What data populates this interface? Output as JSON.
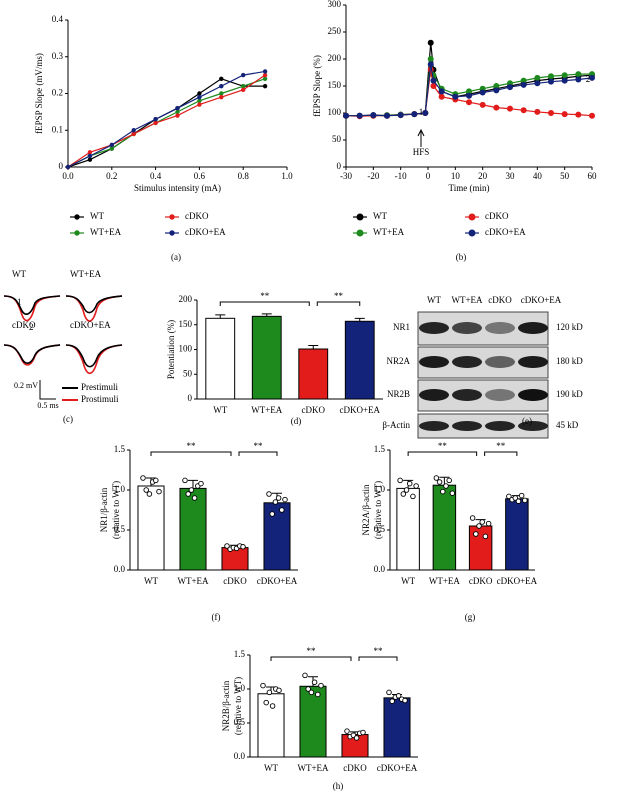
{
  "chart_data": [
    {
      "type": "line",
      "panel_label": "(a)",
      "xlabel": "Stimulus intensity (mA)",
      "ylabel": "fEPSP Slope (mV/ms)",
      "x": [
        0,
        0.1,
        0.2,
        0.3,
        0.4,
        0.5,
        0.6,
        0.7,
        0.8,
        0.9
      ],
      "series": [
        {
          "name": "WT",
          "color": "#000000",
          "values": [
            0,
            0.02,
            0.05,
            0.09,
            0.13,
            0.16,
            0.2,
            0.24,
            0.22,
            0.22
          ]
        },
        {
          "name": "WT+EA",
          "color": "#1e8a1e",
          "values": [
            0,
            0.03,
            0.05,
            0.09,
            0.12,
            0.15,
            0.18,
            0.2,
            0.22,
            0.24
          ]
        },
        {
          "name": "cDKO",
          "color": "#e21b1b",
          "values": [
            0,
            0.04,
            0.06,
            0.09,
            0.12,
            0.14,
            0.17,
            0.19,
            0.21,
            0.25
          ]
        },
        {
          "name": "cDKO+EA",
          "color": "#13237a",
          "values": [
            0,
            0.03,
            0.06,
            0.1,
            0.13,
            0.16,
            0.19,
            0.22,
            0.25,
            0.26
          ]
        }
      ],
      "xlim": [
        0,
        1
      ],
      "xticks": [
        {
          "value": 0,
          "label": "0.0"
        },
        0.2,
        0.4,
        0.6,
        0.8,
        {
          "value": 1,
          "label": "1.0"
        }
      ],
      "ylim": [
        0,
        0.4
      ],
      "yticks": [
        0,
        0.1,
        0.2,
        0.3,
        0.4
      ]
    },
    {
      "type": "line",
      "panel_label": "(b)",
      "xlabel": "Time (min)",
      "ylabel": "fEPSP Slope (%)",
      "x": [
        -30,
        -25,
        -20,
        -15,
        -10,
        -5,
        -1,
        1,
        2,
        5,
        10,
        15,
        20,
        25,
        30,
        35,
        40,
        45,
        50,
        55,
        60
      ],
      "series": [
        {
          "name": "WT",
          "color": "#000000",
          "values": [
            95,
            95,
            96,
            95,
            97,
            98,
            100,
            230,
            180,
            140,
            130,
            135,
            140,
            145,
            150,
            155,
            160,
            163,
            165,
            168,
            170
          ]
        },
        {
          "name": "WT+EA",
          "color": "#1e8a1e",
          "values": [
            95,
            95,
            95,
            96,
            97,
            98,
            100,
            200,
            170,
            145,
            135,
            140,
            145,
            150,
            155,
            160,
            165,
            168,
            170,
            172,
            172
          ]
        },
        {
          "name": "cDKO",
          "color": "#e21b1b",
          "values": [
            95,
            94,
            95,
            95,
            96,
            98,
            100,
            180,
            150,
            130,
            125,
            120,
            115,
            110,
            108,
            105,
            102,
            100,
            98,
            97,
            95
          ]
        },
        {
          "name": "cDKO+EA",
          "color": "#13237a",
          "values": [
            95,
            95,
            96,
            95,
            96,
            98,
            100,
            190,
            160,
            140,
            130,
            132,
            138,
            142,
            148,
            152,
            155,
            158,
            160,
            162,
            165
          ]
        }
      ],
      "annotations": [
        "1",
        "2",
        "HFS"
      ],
      "xlim": [
        -30,
        60
      ],
      "xticks": [
        -30,
        -20,
        -10,
        0,
        10,
        20,
        30,
        40,
        50,
        60
      ],
      "ylim": [
        0,
        300
      ],
      "yticks": [
        0,
        50,
        100,
        150,
        200,
        250,
        300
      ]
    },
    {
      "type": "bar",
      "panel_label": "(d)",
      "ylabel": [
        "Potentiation (%)"
      ],
      "categories": [
        "WT",
        "WT+EA",
        "cDKO",
        "cDKO+EA"
      ],
      "values": [
        163,
        167,
        101,
        157
      ],
      "errors": [
        7,
        5,
        7,
        6
      ],
      "colors": [
        "#ffffff",
        "#1e8a1e",
        "#e21b1b",
        "#13237a"
      ],
      "annotations": [
        "**",
        "**"
      ],
      "ylim": [
        0,
        200
      ],
      "yticks": [
        0,
        50,
        100,
        150,
        200
      ]
    },
    {
      "type": "bar",
      "panel_label": "(f)",
      "ylabel": [
        "NR1/β-actin",
        "(relative to WT)"
      ],
      "categories": [
        "WT",
        "WT+EA",
        "cDKO",
        "cDKO+EA"
      ],
      "values": [
        1.05,
        1.02,
        0.28,
        0.84
      ],
      "errors": [
        0.1,
        0.1,
        0.03,
        0.12
      ],
      "points": [
        [
          1.15,
          1.0,
          0.95,
          1.1,
          1.12,
          0.98
        ],
        [
          1.12,
          0.95,
          1.0,
          0.9,
          1.05,
          1.08
        ],
        [
          0.3,
          0.26,
          0.28,
          0.27,
          0.3,
          0.29
        ],
        [
          0.95,
          0.7,
          0.85,
          0.9,
          0.75,
          0.88
        ]
      ],
      "colors": [
        "#ffffff",
        "#1e8a1e",
        "#e21b1b",
        "#13237a"
      ],
      "annotations": [
        "**",
        "**"
      ],
      "ylim": [
        0,
        1.5
      ],
      "yticks": [
        {
          "value": 0,
          "label": "0.0"
        },
        0.5,
        {
          "value": 1,
          "label": "1.0"
        },
        1.5
      ]
    },
    {
      "type": "bar",
      "panel_label": "(g)",
      "ylabel": [
        "NR2A/β-actin",
        "(relative to WT)"
      ],
      "categories": [
        "WT",
        "WT+EA",
        "cDKO",
        "cDKO+EA"
      ],
      "values": [
        1.02,
        1.06,
        0.55,
        0.89
      ],
      "errors": [
        0.1,
        0.1,
        0.08,
        0.04
      ],
      "points": [
        [
          1.12,
          0.95,
          1.0,
          1.08,
          0.92,
          1.05
        ],
        [
          1.15,
          1.1,
          0.98,
          1.05,
          1.12,
          0.96
        ],
        [
          0.65,
          0.45,
          0.55,
          0.6,
          0.42,
          0.58
        ],
        [
          0.92,
          0.88,
          0.9,
          0.86,
          0.93,
          0.87
        ]
      ],
      "colors": [
        "#ffffff",
        "#1e8a1e",
        "#e21b1b",
        "#13237a"
      ],
      "annotations": [
        "**",
        "**"
      ],
      "ylim": [
        0,
        1.5
      ],
      "yticks": [
        {
          "value": 0,
          "label": "0.0"
        },
        0.5,
        {
          "value": 1,
          "label": "1.0"
        },
        1.5
      ]
    },
    {
      "type": "bar",
      "panel_label": "(h)",
      "ylabel": [
        "NR2B/β-actin",
        "(relative to WT)"
      ],
      "categories": [
        "WT",
        "WT+EA",
        "cDKO",
        "cDKO+EA"
      ],
      "values": [
        0.93,
        1.04,
        0.33,
        0.87
      ],
      "errors": [
        0.1,
        0.14,
        0.04,
        0.05
      ],
      "points": [
        [
          1.05,
          0.8,
          0.95,
          0.75,
          1.0,
          0.98
        ],
        [
          1.2,
          1.0,
          0.95,
          1.1,
          0.92,
          1.05
        ],
        [
          0.38,
          0.3,
          0.32,
          0.28,
          0.35,
          0.36
        ],
        [
          0.95,
          0.82,
          0.88,
          0.9,
          0.85,
          0.83
        ]
      ],
      "colors": [
        "#ffffff",
        "#1e8a1e",
        "#e21b1b",
        "#13237a"
      ],
      "annotations": [
        "**",
        "**"
      ],
      "ylim": [
        0,
        1.5
      ],
      "yticks": [
        {
          "value": 0,
          "label": "0.0"
        },
        0.5,
        {
          "value": 1,
          "label": "1.0"
        },
        1.5
      ]
    }
  ],
  "traces": {
    "panel_label": "(c)",
    "labels": [
      "WT",
      "WT+EA",
      "cDKO",
      "cDKO+EA"
    ],
    "peak_labels": [
      "1",
      "2"
    ],
    "scale_mv": "0.2 mV",
    "scale_ms": "0.5 ms",
    "legend": [
      {
        "name": "Prestimuli",
        "color": "#000000"
      },
      {
        "name": "Prostimuli",
        "color": "#e21b1b"
      }
    ]
  },
  "blot": {
    "panel_label": "(e)",
    "lanes": [
      "WT",
      "WT+EA",
      "cDKO",
      "cDKO+EA"
    ],
    "rows": [
      {
        "name": "NR1",
        "size": "120 kD"
      },
      {
        "name": "NR2A",
        "size": "180 kD"
      },
      {
        "name": "NR2B",
        "size": "190 kD"
      },
      {
        "name": "β-Actin",
        "size": "45 kD"
      }
    ]
  }
}
